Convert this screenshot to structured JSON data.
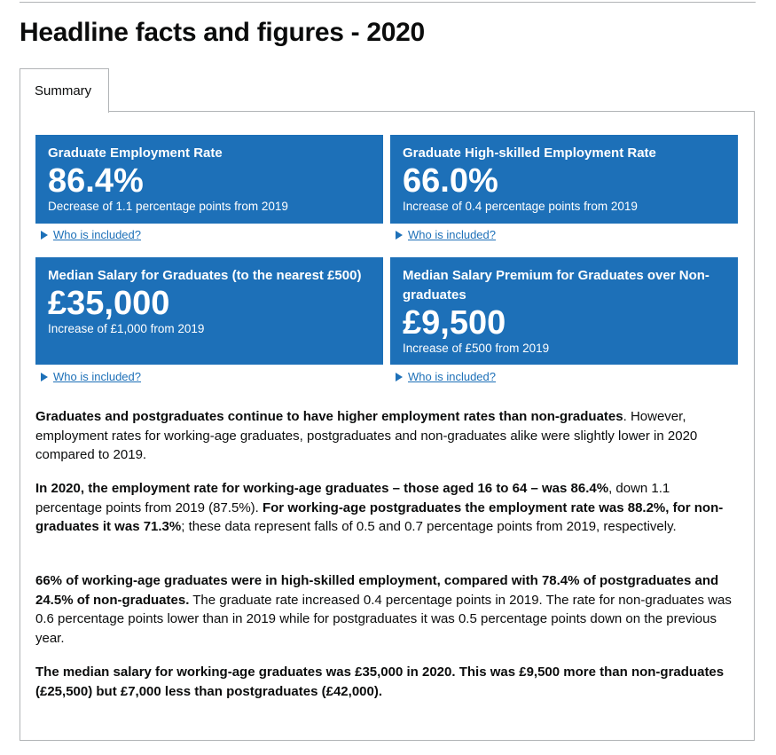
{
  "page": {
    "title": "Headline facts and figures - 2020"
  },
  "tabs": [
    {
      "label": "Summary"
    }
  ],
  "tiles": [
    {
      "title": "Graduate Employment Rate",
      "value": "86.4%",
      "change": "Decrease of 1.1 percentage points from 2019",
      "details_link": "Who is included?"
    },
    {
      "title": "Graduate High-skilled Employment Rate",
      "value": "66.0%",
      "change": "Increase of 0.4 percentage points from 2019",
      "details_link": "Who is included?"
    },
    {
      "title": "Median Salary for Graduates (to the nearest £500)",
      "value": "£35,000",
      "change": "Increase of £1,000 from 2019",
      "details_link": "Who is included?"
    },
    {
      "title": "Median Salary Premium for Graduates over Non-graduates",
      "value": "£9,500",
      "change": "Increase of £500 from 2019",
      "details_link": "Who is included?"
    }
  ],
  "paragraphs": [
    {
      "bold": "Graduates and postgraduates continue to have higher employment rates than non-graduates",
      "rest": ". However, employment rates for working-age graduates, postgraduates and non-graduates alike were slightly lower in 2020 compared to 2019."
    },
    {
      "bold1": "In 2020, the employment rate for working-age graduates – those aged 16 to 64 – was 86.4%",
      "mid": ", down 1.1 percentage points from 2019 (87.5%). ",
      "bold2": "For working-age postgraduates the employment rate was 88.2%, for non-graduates it was 71.3%",
      "rest": "; these data represent falls of 0.5 and 0.7 percentage points from 2019, respectively."
    },
    {
      "bold": "66% of working-age graduates were in high-skilled employment, compared with 78.4% of postgraduates and 24.5% of non-graduates.",
      "rest": " The graduate rate increased 0.4 percentage points in 2019. The rate for non-graduates was 0.6 percentage points lower than in 2019 while for postgraduates it was 0.5 percentage points down on the previous year."
    },
    {
      "bold": "The median salary for working-age graduates was £35,000 in 2020. This was £9,500 more than non-graduates (£25,500) but £7,000 less than postgraduates (£42,000)."
    }
  ]
}
